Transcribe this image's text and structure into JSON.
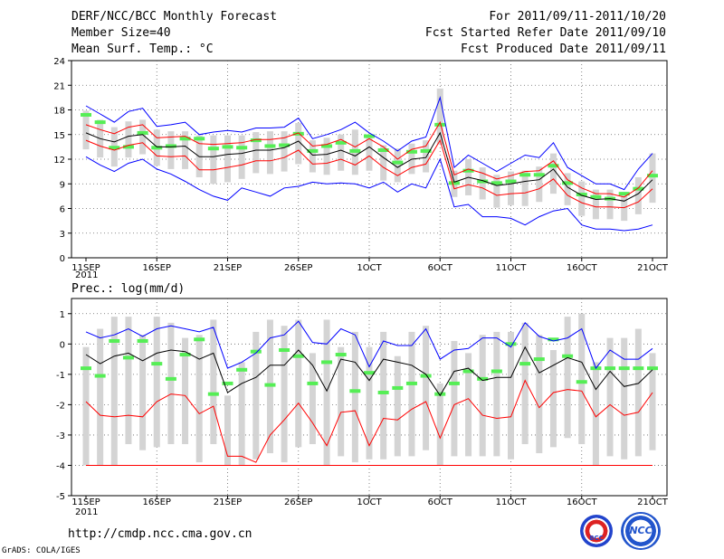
{
  "header": {
    "title": "DERF/NCC/BCC Monthly Forecast",
    "member_size": "Member Size=40",
    "variable": "Mean Surf. Temp.: °C",
    "forecast_period": "For 2011/09/11-2011/10/20",
    "started_refer": "Fcst Started Refer Date 2011/09/10",
    "produced": "Fcst Produced Date 2011/09/11"
  },
  "footer": {
    "url": "http://cmdp.ncc.cma.gov.cn",
    "credit": "GrADS: COLA/IGES"
  },
  "logos": {
    "bcc": "BCC",
    "ncc": "NCC"
  },
  "colors": {
    "box": "#d4d4d4",
    "mean": "#000000",
    "spread_upper": "#ff0000",
    "extreme": "#0000ff",
    "climatology": "#55ee55",
    "grid": "#666666"
  },
  "chart_data": [
    {
      "type": "box-and-line",
      "title": "Mean Surf. Temp.: °C",
      "days": 40,
      "x_tick_labels": [
        "11SEP",
        "16SEP",
        "21SEP",
        "26SEP",
        "1OCT",
        "6OCT",
        "11OCT",
        "16OCT",
        "21OCT"
      ],
      "x_tick_day_index": [
        0,
        5,
        10,
        15,
        20,
        25,
        30,
        35,
        40
      ],
      "x_year_label": "2011",
      "ylim": [
        0,
        24
      ],
      "y_ticks": [
        0,
        3,
        6,
        9,
        12,
        15,
        18,
        21,
        24
      ],
      "series": [
        {
          "name": "max",
          "color": "#0000ff",
          "values": [
            18.5,
            17.5,
            16.5,
            17.8,
            18.2,
            16,
            16.2,
            16.5,
            15,
            15.3,
            15.5,
            15.3,
            15.8,
            15.8,
            15.9,
            17,
            14.5,
            15,
            15.6,
            16.5,
            15.2,
            14.2,
            13,
            14.2,
            14.7,
            19.5,
            11,
            12.5,
            11.5,
            10.5,
            11.5,
            12.5,
            12.2,
            14,
            11,
            10,
            9,
            9,
            8.3,
            10.8,
            12.7
          ]
        },
        {
          "name": "upper",
          "color": "#ff0000",
          "values": [
            16.2,
            15.6,
            15.1,
            15.9,
            16.2,
            14.6,
            14.7,
            14.8,
            13.9,
            13.8,
            13.9,
            14,
            14.4,
            14.4,
            14.6,
            15.2,
            13.6,
            13.8,
            14.4,
            13.5,
            14.5,
            13.5,
            12,
            13.2,
            13.6,
            16.5,
            10.1,
            10.8,
            10.3,
            9.6,
            10,
            10.5,
            10.6,
            11.8,
            9.5,
            8.5,
            7.8,
            7.8,
            7.4,
            8.5,
            10.6
          ]
        },
        {
          "name": "mean",
          "color": "#000000",
          "values": [
            15.2,
            14.5,
            14.1,
            14.8,
            15,
            13.5,
            13.5,
            13.6,
            12.3,
            12.3,
            12.6,
            12.7,
            13.1,
            13.1,
            13.4,
            14.2,
            12.5,
            12.6,
            13.1,
            12.4,
            13.5,
            12.2,
            11,
            12,
            12.2,
            15.2,
            9.2,
            9.8,
            9.4,
            8.8,
            9,
            9.3,
            9.5,
            10.8,
            8.6,
            7.6,
            7.1,
            7.2,
            6.9,
            7.8,
            9.5
          ]
        },
        {
          "name": "lower",
          "color": "#ff0000",
          "values": [
            14.3,
            13.6,
            13.1,
            13.7,
            14,
            12.4,
            12.3,
            12.4,
            10.7,
            10.7,
            11,
            11.3,
            11.8,
            11.8,
            12.2,
            13.1,
            11.4,
            11.5,
            12,
            11.3,
            12.4,
            11,
            10,
            11,
            11.4,
            14.3,
            8.4,
            8.9,
            8.5,
            7.6,
            7.8,
            7.9,
            8.4,
            9.6,
            7.6,
            6.7,
            6.2,
            6.2,
            6.1,
            6.8,
            8.4
          ]
        },
        {
          "name": "min",
          "color": "#0000ff",
          "values": [
            12.3,
            11.3,
            10.5,
            11.5,
            12,
            10.8,
            10.2,
            9.3,
            8.3,
            7.5,
            7,
            8.5,
            8,
            7.5,
            8.5,
            8.7,
            9.2,
            9,
            9.1,
            9,
            8.5,
            9.2,
            8,
            9,
            8.5,
            12,
            6.2,
            6.5,
            5,
            5,
            4.8,
            4,
            5,
            5.7,
            6,
            4,
            3.5,
            3.5,
            3.3,
            3.5,
            4
          ]
        },
        {
          "name": "box-high",
          "color": "#d4d4d4",
          "values": [
            17.9,
            16.8,
            15.9,
            16.6,
            16.8,
            15.6,
            15.4,
            15.4,
            14.9,
            14.9,
            14.9,
            14.9,
            15.3,
            15.4,
            15.4,
            16.4,
            14.3,
            14.6,
            15,
            15.6,
            14.7,
            13.7,
            13.3,
            13.9,
            14.3,
            20.6,
            10.6,
            12,
            11,
            10.1,
            10.5,
            10.6,
            11.1,
            12.7,
            10.3,
            9.3,
            8.3,
            8.3,
            8,
            9.8,
            12.7
          ]
        },
        {
          "name": "box-low",
          "color": "#d4d4d4",
          "values": [
            13.2,
            12.2,
            11.1,
            12.2,
            12.6,
            11.2,
            10.8,
            10.8,
            9.8,
            9,
            9.2,
            9.6,
            10.3,
            10.2,
            10.5,
            11.4,
            10.4,
            10.1,
            10.6,
            10.1,
            10.6,
            9.4,
            9.2,
            10.2,
            10.4,
            13.8,
            7.4,
            7.6,
            7.1,
            6.1,
            6.4,
            6.3,
            6.8,
            7.8,
            6.4,
            5.1,
            4.7,
            4.7,
            4.5,
            5.3,
            6.7
          ]
        },
        {
          "name": "climatology",
          "color": "#55ee55",
          "values": [
            17.4,
            16.5,
            13.4,
            13.5,
            15.2,
            13.4,
            13.6,
            14.5,
            14.5,
            13.3,
            13.5,
            13.4,
            14.3,
            13.6,
            13.7,
            15.1,
            13,
            13.6,
            14,
            13,
            14.8,
            13.1,
            11.6,
            12.9,
            13,
            16.2,
            9.1,
            10.6,
            9.3,
            9.1,
            9.3,
            10.1,
            10.1,
            11.2,
            9.1,
            7.7,
            7.4,
            7.2,
            7.8,
            8.4,
            10
          ]
        }
      ]
    },
    {
      "type": "box-and-line",
      "title": "Prec.: log(mm/d)",
      "days": 40,
      "x_tick_labels": [
        "11SEP",
        "16SEP",
        "21SEP",
        "26SEP",
        "1OCT",
        "6OCT",
        "11OCT",
        "16OCT",
        "21OCT"
      ],
      "x_tick_day_index": [
        0,
        5,
        10,
        15,
        20,
        25,
        30,
        35,
        40
      ],
      "x_year_label": "2011",
      "ylim": [
        -5,
        1.5
      ],
      "y_ticks": [
        -5,
        -4,
        -3,
        -2,
        -1,
        0,
        1
      ],
      "series": [
        {
          "name": "max",
          "color": "#0000ff",
          "values": [
            0.4,
            0.2,
            0.3,
            0.5,
            0.25,
            0.5,
            0.6,
            0.5,
            0.4,
            0.55,
            -0.8,
            -0.6,
            -0.3,
            0.2,
            0.3,
            0.75,
            0.05,
            0,
            0.5,
            0.3,
            -0.75,
            0.1,
            -0.05,
            -0.05,
            0.5,
            -0.5,
            -0.2,
            -0.15,
            0.2,
            0.2,
            -0.1,
            0.7,
            0.25,
            0.1,
            0.2,
            0.5,
            -0.8,
            -0.2,
            -0.5,
            -0.5,
            -0.15
          ]
        },
        {
          "name": "mean",
          "color": "#000000",
          "values": [
            -0.35,
            -0.65,
            -0.4,
            -0.3,
            -0.55,
            -0.3,
            -0.2,
            -0.25,
            -0.5,
            -0.3,
            -1.6,
            -1.3,
            -1.1,
            -0.7,
            -0.7,
            -0.2,
            -0.7,
            -1.55,
            -0.5,
            -0.6,
            -1.2,
            -0.5,
            -0.6,
            -0.7,
            -1,
            -1.7,
            -0.9,
            -0.8,
            -1.2,
            -1.1,
            -1.1,
            -0.1,
            -0.95,
            -0.7,
            -0.45,
            -0.6,
            -1.5,
            -0.9,
            -1.4,
            -1.3,
            -0.85
          ]
        },
        {
          "name": "lower",
          "color": "#ff0000",
          "values": [
            -1.9,
            -2.35,
            -2.4,
            -2.35,
            -2.4,
            -1.9,
            -1.65,
            -1.7,
            -2.3,
            -2.05,
            -3.7,
            -3.7,
            -3.9,
            -3,
            -2.5,
            -1.95,
            -2.6,
            -3.35,
            -2.25,
            -2.2,
            -3.35,
            -2.45,
            -2.5,
            -2.15,
            -1.9,
            -3.1,
            -2,
            -1.8,
            -2.35,
            -2.45,
            -2.4,
            -1.2,
            -2.1,
            -1.6,
            -1.5,
            -1.55,
            -2.4,
            -2,
            -2.35,
            -2.25,
            -1.6
          ]
        },
        {
          "name": "floor",
          "color": "#ff0000",
          "values": [
            -4,
            -4,
            -4,
            -4,
            -4,
            -4,
            -4,
            -4,
            -4,
            -4,
            -4,
            -4,
            -4,
            -4,
            -4,
            -4,
            -4,
            -4,
            -4,
            -4,
            -4,
            -4,
            -4,
            -4,
            -4,
            -4,
            -4,
            -4,
            -4,
            -4,
            -4,
            -4,
            -4,
            -4,
            -4,
            -4,
            -4,
            -4,
            -4,
            -4,
            -4
          ]
        },
        {
          "name": "box-high",
          "color": "#d4d4d4",
          "values": [
            -0.1,
            0.5,
            0.9,
            0.9,
            0.3,
            0.9,
            0.7,
            0.2,
            0.3,
            0.8,
            -1.7,
            -0.6,
            0.4,
            0.8,
            0.6,
            0.8,
            -0.3,
            0.8,
            -0.1,
            0.4,
            -0.1,
            0.4,
            -0.4,
            0.4,
            0.6,
            -1.3,
            0.1,
            -0.3,
            0.3,
            0.4,
            0.4,
            0.7,
            0.3,
            -0.2,
            0.9,
            1,
            -0.6,
            0.2,
            0.2,
            0.5,
            -0.3
          ]
        },
        {
          "name": "box-low",
          "color": "#d4d4d4",
          "values": [
            -4,
            -4,
            -4,
            -3.3,
            -3.5,
            -3.4,
            -3.3,
            -3.3,
            -3.9,
            -3.3,
            -4,
            -4,
            -3.8,
            -3.6,
            -3.9,
            -3.4,
            -3.3,
            -4,
            -3.7,
            -3.9,
            -3.8,
            -3.8,
            -3.7,
            -3.7,
            -3.5,
            -4,
            -3.7,
            -3.7,
            -3.7,
            -3.7,
            -3.8,
            -3.3,
            -3.6,
            -3.4,
            -3.1,
            -3.3,
            -4,
            -3.7,
            -3.8,
            -3.7,
            -3.5
          ]
        },
        {
          "name": "climatology",
          "color": "#55ee55",
          "values": [
            -0.8,
            -1.05,
            0.1,
            -0.45,
            0.1,
            -0.65,
            -1.15,
            -0.35,
            0.15,
            -1.65,
            -1.3,
            -0.85,
            -0.25,
            -1.35,
            -0.2,
            -0.4,
            -1.3,
            -0.6,
            -0.35,
            -1.55,
            -0.95,
            -1.6,
            -1.45,
            -1.3,
            -1.05,
            -1.65,
            -1.3,
            -0.9,
            -1.15,
            -0.9,
            0,
            -0.65,
            -0.5,
            0.15,
            -0.4,
            -1.25,
            -0.8,
            -0.8,
            -0.8,
            -0.8,
            -0.8
          ]
        }
      ]
    }
  ]
}
